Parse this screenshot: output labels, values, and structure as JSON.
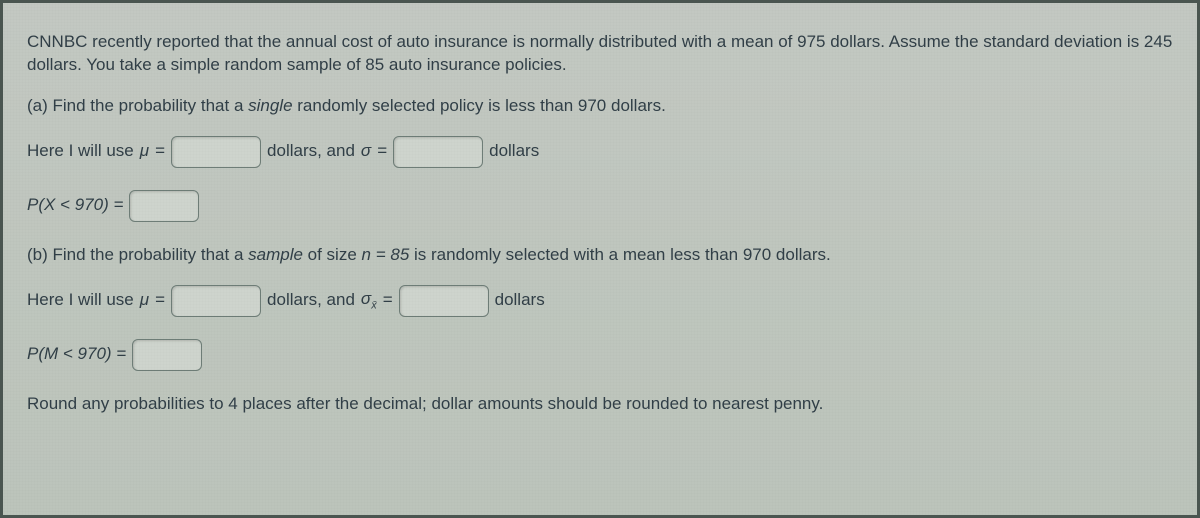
{
  "intro": "CNNBC recently reported that the annual cost of auto insurance is normally distributed with a mean of 975 dollars. Assume the standard deviation is 245 dollars. You take a simple random sample of 85 auto insurance policies.",
  "partA": {
    "prompt_pre": "(a) Find the probability that a ",
    "prompt_italic": "single",
    "prompt_post": " randomly selected policy is less than 970 dollars.",
    "mu_label_pre": "Here I will use ",
    "mu_sym": "μ",
    "equals": " = ",
    "mid1": " dollars, and ",
    "sigma_sym": "σ",
    "mid2": " dollars",
    "prob_label": "P(X < 970) = "
  },
  "partB": {
    "prompt_pre": "(b) Find the probability that a ",
    "prompt_italic": "sample",
    "prompt_mid": " of size ",
    "n_expr": "n = 85",
    "prompt_post": " is randomly selected with a mean less than 970 dollars.",
    "mu_label_pre": "Here I will use ",
    "mu_sym": "μ",
    "equals": " = ",
    "mid1": " dollars, and ",
    "sigma_sym": "σ",
    "sub": "x̄",
    "mid2": " dollars",
    "prob_label": "P(M < 970) = "
  },
  "footer": "Round any probabilities to 4 places after the decimal; dollar amounts should be rounded to nearest penny.",
  "colors": {
    "text": "#313f47",
    "bg": "#bfc6be",
    "border": "#4a5550",
    "input_border": "#6e7d77",
    "input_bg": "#ced4cd"
  }
}
